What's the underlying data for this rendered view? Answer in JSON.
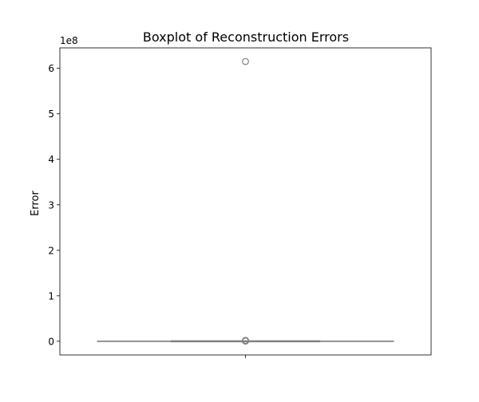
{
  "chart_data": {
    "type": "boxplot",
    "title": "Boxplot of Reconstruction Errors",
    "xlabel": "",
    "ylabel": "Error",
    "offset_label": "1e8",
    "y_scale_multiplier": 100000000,
    "ylim": [
      -0.3,
      6.45
    ],
    "yticks": [
      0,
      1,
      2,
      3,
      4,
      5,
      6
    ],
    "ytick_labels": [
      "0",
      "1",
      "2",
      "3",
      "4",
      "5",
      "6"
    ],
    "grid": false,
    "legend": "none",
    "series": [
      {
        "min": 0,
        "q1": 0,
        "median": 0,
        "q3": 0,
        "max": 0,
        "outliers": [
          0.01,
          0.02,
          0.015,
          0.005,
          6.15
        ]
      }
    ],
    "box_color": "#808080",
    "outlier_color": "#808080"
  }
}
